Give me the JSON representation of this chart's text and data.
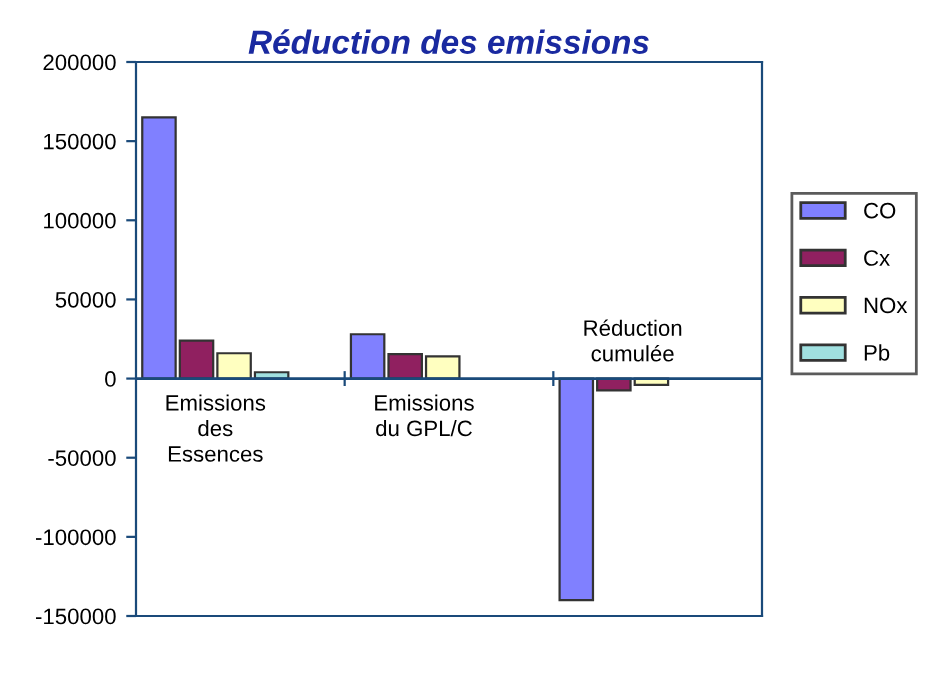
{
  "chart_data": {
    "type": "bar",
    "title": "Réduction des emissions",
    "categories": [
      "Emissions\ndes\nEssences",
      "Emissions\ndu GPL/C",
      "Réduction\ncumulée"
    ],
    "series": [
      {
        "name": "CO",
        "color": "#8080ff",
        "values": [
          165000,
          28000,
          -140000
        ]
      },
      {
        "name": "Cx",
        "color": "#902060",
        "values": [
          24000,
          15500,
          -7500
        ]
      },
      {
        "name": "NOx",
        "color": "#ffffc0",
        "values": [
          16000,
          14000,
          -4000
        ]
      },
      {
        "name": "Pb",
        "color": "#a0e0e0",
        "values": [
          4000,
          null,
          null
        ]
      }
    ],
    "ylim": [
      -150000,
      200000
    ],
    "yticks": [
      -150000,
      -100000,
      -50000,
      0,
      50000,
      100000,
      150000,
      200000
    ],
    "grid": false,
    "legend": "right"
  }
}
